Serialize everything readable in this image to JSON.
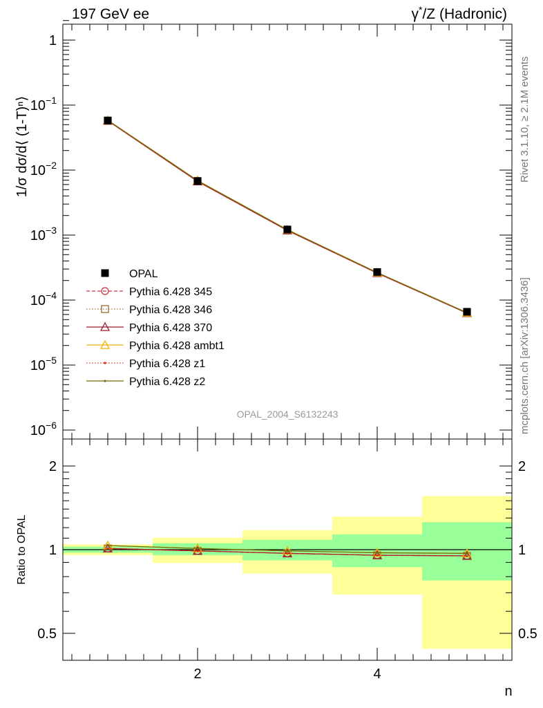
{
  "header": {
    "left_title": "197 GeV ee",
    "right_title_prefix": "γ",
    "right_title_star": "*",
    "right_title_rest": "/Z (Hadronic)"
  },
  "side_labels": {
    "rivet": "Rivet 3.1.10, ≥ 2.1M events",
    "mcplots": "mcplots.cern.ch [arXiv:1306.3436]"
  },
  "watermark": "OPAL_2004_S6132243",
  "chart_data": [
    {
      "type": "line",
      "panel": "main",
      "ylabel": "1/σ dσ/d⟨ (1-T)ⁿ⟩",
      "y_scale": "log",
      "ylim": [
        5e-07,
        2
      ],
      "xlim": [
        0.5,
        5.5
      ],
      "y_tick_labels": [
        {
          "base": "1",
          "exp": ""
        },
        {
          "base": "10",
          "exp": "−1"
        },
        {
          "base": "10",
          "exp": "−2"
        },
        {
          "base": "10",
          "exp": "−3"
        },
        {
          "base": "10",
          "exp": "−4"
        },
        {
          "base": "10",
          "exp": "−5"
        },
        {
          "base": "10",
          "exp": "−6"
        }
      ],
      "x": [
        1,
        2,
        3,
        4,
        5
      ],
      "series": [
        {
          "name": "OPAL",
          "values": [
            0.058,
            0.0068,
            0.00122,
            0.00027,
            6.6e-05
          ],
          "color": "#000000",
          "marker": "filled-square",
          "line": "none"
        },
        {
          "name": "Pythia 6.428 345",
          "values": [
            0.0575,
            0.0067,
            0.00118,
            0.00026,
            6.3e-05
          ],
          "color": "#c8334a",
          "marker": "open-circle",
          "line": "dashed"
        },
        {
          "name": "Pythia 6.428 346",
          "values": [
            0.0575,
            0.0067,
            0.00118,
            0.00026,
            6.3e-05
          ],
          "color": "#9e6b2b",
          "marker": "open-square",
          "line": "dotted"
        },
        {
          "name": "Pythia 6.428 370",
          "values": [
            0.0575,
            0.0067,
            0.00118,
            0.00026,
            6.3e-05
          ],
          "color": "#9b1c2e",
          "marker": "open-triangle",
          "line": "solid"
        },
        {
          "name": "Pythia 6.428 ambt1",
          "values": [
            0.0585,
            0.0069,
            0.00121,
            0.000265,
            6.4e-05
          ],
          "color": "#f0b000",
          "marker": "open-triangle",
          "line": "solid"
        },
        {
          "name": "Pythia 6.428 z1",
          "values": [
            0.0575,
            0.0067,
            0.00118,
            0.00026,
            6.3e-05
          ],
          "color": "#e8221b",
          "marker": "dot",
          "line": "dotted"
        },
        {
          "name": "Pythia 6.428 z2",
          "values": [
            0.0585,
            0.0069,
            0.00121,
            0.000265,
            6.4e-05
          ],
          "color": "#6e6e0c",
          "marker": "dot",
          "line": "solid"
        }
      ],
      "legend_position": "lower-left"
    },
    {
      "type": "line",
      "panel": "ratio",
      "ylabel": "Ratio to OPAL",
      "xlabel": "n",
      "y_scale": "log",
      "ylim": [
        0.42,
        2.4
      ],
      "xlim": [
        0.5,
        5.5
      ],
      "y_ticks": [
        0.5,
        1,
        2
      ],
      "y_tick_labels": [
        "0.5",
        "1",
        "2"
      ],
      "x_ticks": [
        2,
        4
      ],
      "x_tick_labels": [
        "2",
        "4"
      ],
      "bands": [
        {
          "x_low": 0.5,
          "x_high": 1.5,
          "stat_low": 0.975,
          "stat_high": 1.025,
          "total_low": 0.955,
          "total_high": 1.045
        },
        {
          "x_low": 1.5,
          "x_high": 2.5,
          "stat_low": 0.955,
          "stat_high": 1.055,
          "total_low": 0.895,
          "total_high": 1.105
        },
        {
          "x_low": 2.5,
          "x_high": 3.5,
          "stat_low": 0.915,
          "stat_high": 1.085,
          "total_low": 0.82,
          "total_high": 1.175
        },
        {
          "x_low": 3.5,
          "x_high": 4.5,
          "stat_low": 0.865,
          "stat_high": 1.135,
          "total_low": 0.69,
          "total_high": 1.315
        },
        {
          "x_low": 4.5,
          "x_high": 5.5,
          "stat_low": 0.775,
          "stat_high": 1.255,
          "total_low": 0.44,
          "total_high": 1.56
        }
      ],
      "band_colors": {
        "stat": "#99ff99",
        "total": "#ffff99"
      },
      "reference_line": 1,
      "x": [
        1,
        2,
        3,
        4,
        5
      ],
      "series": [
        {
          "name": "Pythia 6.428 345",
          "values": [
            1.01,
            0.99,
            0.97,
            0.955,
            0.95
          ],
          "color": "#c8334a",
          "marker": "open-circle",
          "line": "dashed"
        },
        {
          "name": "Pythia 6.428 346",
          "values": [
            1.01,
            0.99,
            0.97,
            0.955,
            0.95
          ],
          "color": "#9e6b2b",
          "marker": "open-square",
          "line": "dotted"
        },
        {
          "name": "Pythia 6.428 370",
          "values": [
            1.01,
            0.99,
            0.97,
            0.955,
            0.95
          ],
          "color": "#9b1c2e",
          "marker": "open-triangle",
          "line": "solid"
        },
        {
          "name": "Pythia 6.428 ambt1",
          "values": [
            1.035,
            1.01,
            0.99,
            0.975,
            0.97
          ],
          "color": "#f0b000",
          "marker": "open-triangle",
          "line": "solid"
        },
        {
          "name": "Pythia 6.428 z1",
          "values": [
            1.01,
            0.99,
            0.97,
            0.955,
            0.95
          ],
          "color": "#e8221b",
          "marker": "dot",
          "line": "dotted"
        },
        {
          "name": "Pythia 6.428 z2",
          "values": [
            1.035,
            1.01,
            0.99,
            0.975,
            0.97
          ],
          "color": "#6e6e0c",
          "marker": "dot",
          "line": "solid"
        }
      ]
    }
  ]
}
